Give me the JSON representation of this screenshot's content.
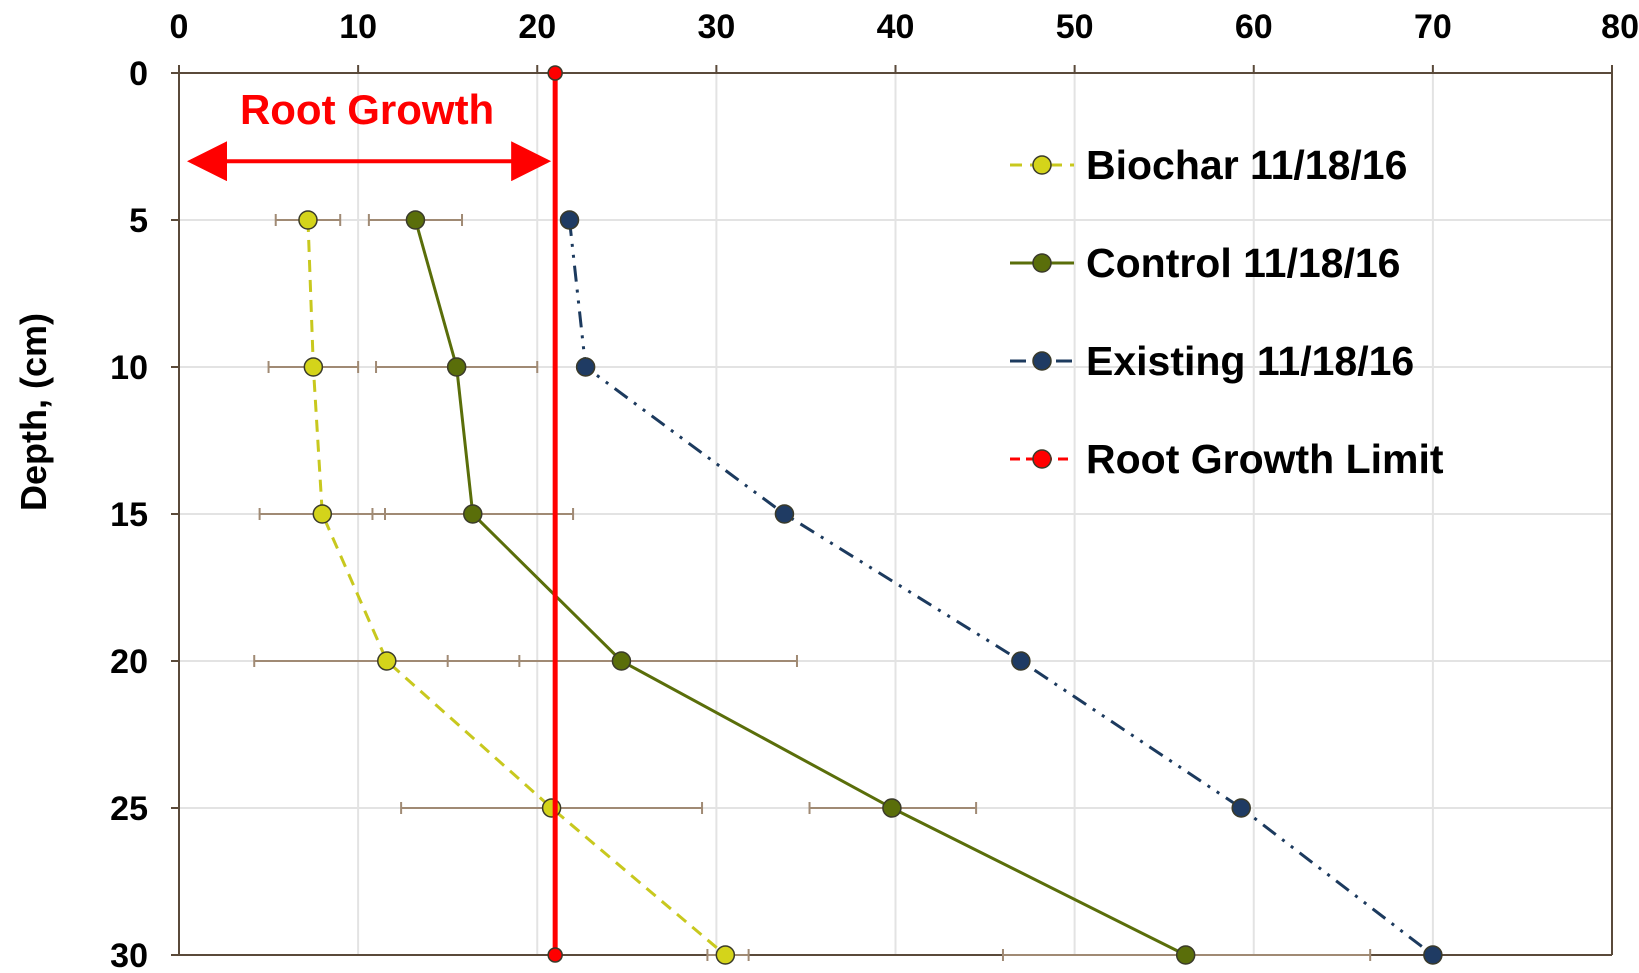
{
  "chart_data": {
    "type": "line",
    "ylabel": "Depth, (cm)",
    "xlabel": "",
    "xlim": [
      0,
      80
    ],
    "ylim": [
      30,
      0
    ],
    "x_ticks": [
      "0",
      "10",
      "20",
      "30",
      "40",
      "50",
      "60",
      "70",
      "80"
    ],
    "y_ticks": [
      "0",
      "5",
      "10",
      "15",
      "20",
      "25",
      "30"
    ],
    "x_axis_position": "top",
    "y_axis_reversed": true,
    "grid": true,
    "legend_position": "top-right",
    "annotation": {
      "text": "Root Growth",
      "arrow_from_x": 0,
      "arrow_to_x": 21,
      "at_depth": 3,
      "color": "#ff0000"
    },
    "series": [
      {
        "name": "Biochar 11/18/16",
        "color": "#c8c81e",
        "line_style": "dashed",
        "marker_fill": "#d4d41a",
        "points": [
          {
            "x": 7.2,
            "y": 5,
            "err_lo": 5.4,
            "err_hi": 9.0
          },
          {
            "x": 7.5,
            "y": 10,
            "err_lo": 5.0,
            "err_hi": 10.0
          },
          {
            "x": 8.0,
            "y": 15,
            "err_lo": 4.5,
            "err_hi": 11.5
          },
          {
            "x": 11.6,
            "y": 20,
            "err_lo": 4.2,
            "err_hi": 19.0
          },
          {
            "x": 20.8,
            "y": 25,
            "err_lo": 12.4,
            "err_hi": 29.2
          },
          {
            "x": 30.5,
            "y": 30,
            "err_lo": 29.5,
            "err_hi": 31.8
          }
        ]
      },
      {
        "name": "Control 11/18/16",
        "color": "#5a6e0a",
        "line_style": "solid",
        "marker_fill": "#5a6e0a",
        "points": [
          {
            "x": 13.2,
            "y": 5,
            "err_lo": 10.6,
            "err_hi": 15.8
          },
          {
            "x": 15.5,
            "y": 10,
            "err_lo": 11.0,
            "err_hi": 20.0
          },
          {
            "x": 16.4,
            "y": 15,
            "err_lo": 10.8,
            "err_hi": 22.0
          },
          {
            "x": 24.7,
            "y": 20,
            "err_lo": 15.0,
            "err_hi": 34.5
          },
          {
            "x": 39.8,
            "y": 25,
            "err_lo": 35.2,
            "err_hi": 44.5
          },
          {
            "x": 56.2,
            "y": 30,
            "err_lo": 46.0,
            "err_hi": 66.5
          }
        ]
      },
      {
        "name": "Existing 11/18/16",
        "color": "#1c3a5e",
        "line_style": "dash-dot-dot",
        "marker_fill": "#1f3b63",
        "points": [
          {
            "x": 21.8,
            "y": 5
          },
          {
            "x": 22.7,
            "y": 10
          },
          {
            "x": 33.8,
            "y": 15
          },
          {
            "x": 47.0,
            "y": 20
          },
          {
            "x": 59.3,
            "y": 25
          },
          {
            "x": 70.0,
            "y": 30
          }
        ]
      },
      {
        "name": "Root Growth Limit",
        "color": "#ff0000",
        "line_style": "solid",
        "marker_fill": "#ff0000",
        "points": [
          {
            "x": 21.0,
            "y": 0
          },
          {
            "x": 21.0,
            "y": 30
          }
        ]
      }
    ]
  }
}
